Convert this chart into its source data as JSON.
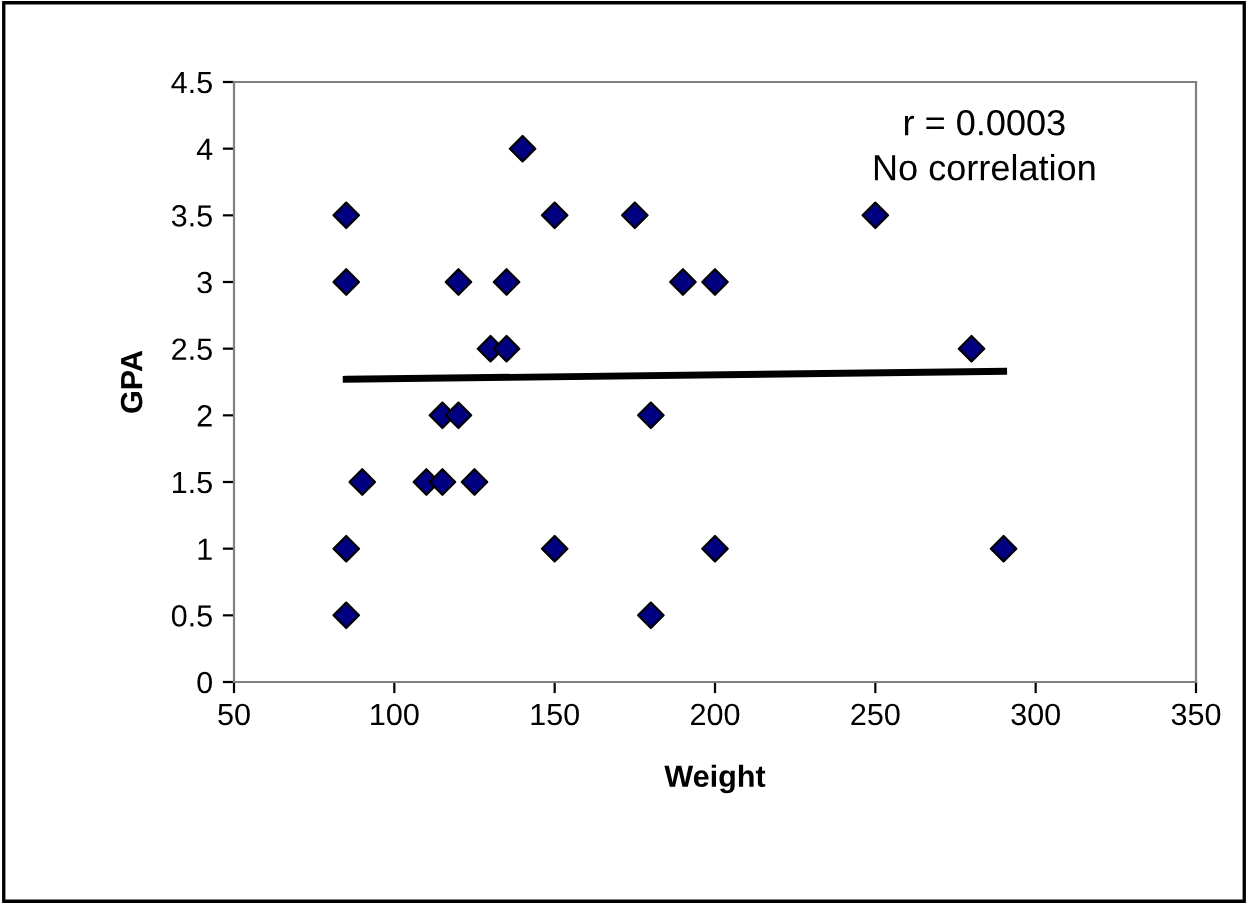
{
  "chart_data": {
    "type": "scatter",
    "xlabel": "Weight",
    "ylabel": "GPA",
    "xlim": [
      50,
      350
    ],
    "xticks": [
      50,
      100,
      150,
      200,
      250,
      300,
      350
    ],
    "ylim": [
      0,
      4.5
    ],
    "yticks": [
      0,
      0.5,
      1,
      1.5,
      2,
      2.5,
      3,
      3.5,
      4,
      4.5
    ],
    "grid": false,
    "legend": false,
    "annotations": [
      "r = 0.0003",
      "No correlation"
    ],
    "series": [
      {
        "marker": "diamond",
        "color": "#000080",
        "x": [
          85,
          85,
          85,
          85,
          90,
          110,
          115,
          115,
          120,
          120,
          125,
          130,
          135,
          135,
          140,
          150,
          150,
          175,
          180,
          180,
          190,
          200,
          200,
          250,
          280,
          290
        ],
        "values": [
          3.5,
          3,
          1,
          0.5,
          1.5,
          1.5,
          1.5,
          2,
          2,
          3,
          1.5,
          2.5,
          2.5,
          3,
          4,
          3.5,
          1,
          3.5,
          2,
          0.5,
          3,
          3,
          1,
          3.5,
          2.5,
          1
        ]
      },
      {
        "type": "line",
        "marker": "none",
        "color": "#000000",
        "x": [
          85,
          290
        ],
        "values": [
          2.27,
          2.33
        ]
      }
    ]
  }
}
